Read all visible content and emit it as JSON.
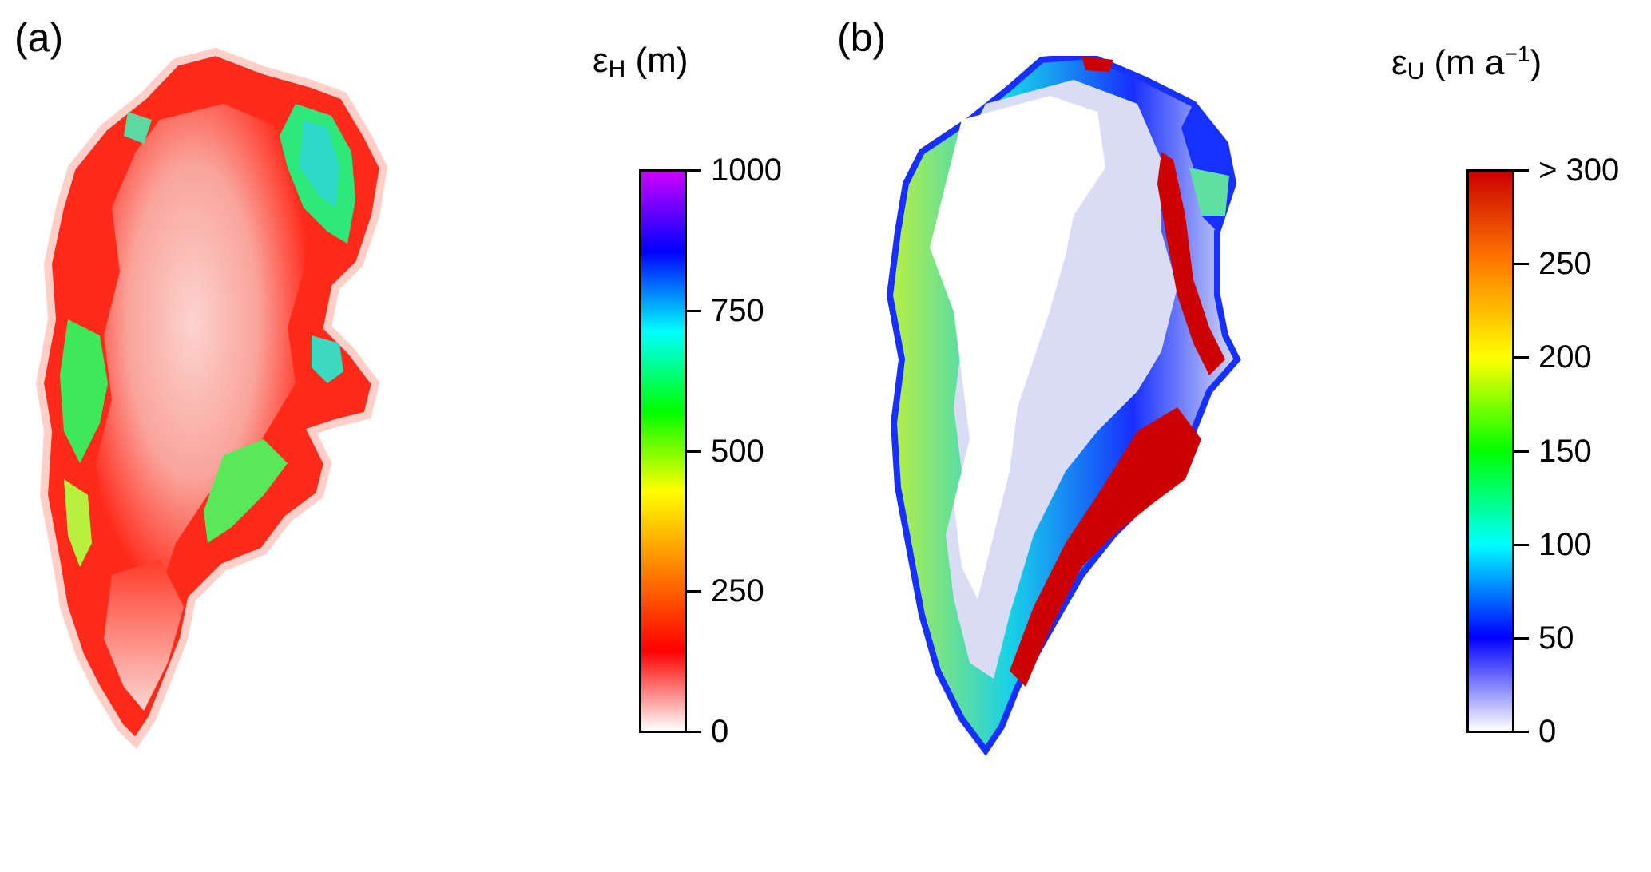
{
  "panels": [
    {
      "label": "(a)",
      "colorbar": {
        "title_main": "ε",
        "title_sub": "H",
        "title_rest": " (m)",
        "ticks": [
          "1000",
          "750",
          "500",
          "250",
          "0"
        ],
        "range": [
          0,
          1000
        ],
        "gradient": [
          "#ffffff",
          "#ff0000",
          "#ff7f00",
          "#ffff00",
          "#00ff00",
          "#00ffff",
          "#0000ff",
          "#cc00ff"
        ]
      },
      "map": {
        "base_color": "#ff2a1a",
        "interior_color": "#fbb7b0",
        "high_color": "#2ee87a"
      }
    },
    {
      "label": "(b)",
      "colorbar": {
        "title_main": "ε",
        "title_sub": "U",
        "title_rest": " (m a",
        "title_sup": "−1",
        "title_close": ")",
        "ticks": [
          "> 300",
          "250",
          "200",
          "150",
          "100",
          "50",
          "0"
        ],
        "range": [
          0,
          300
        ],
        "gradient": [
          "#ffffff",
          "#0000ff",
          "#00ffff",
          "#00ff00",
          "#ffff00",
          "#ff7f00",
          "#cc0000"
        ]
      },
      "map": {
        "base_color": "#ffffff",
        "interior_color": "#d8dcf4",
        "edge_color": "#1830ff",
        "fast_color": "#cc0000"
      }
    }
  ]
}
